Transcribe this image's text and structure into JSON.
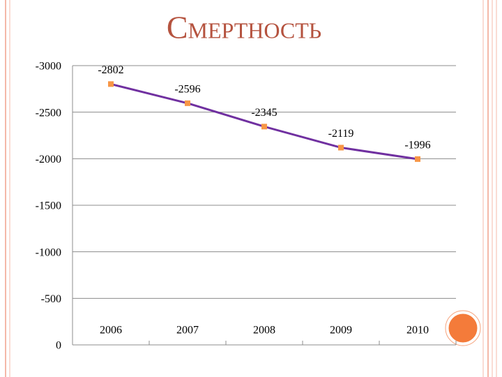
{
  "chart_data": {
    "type": "line",
    "title": "Смертность",
    "categories": [
      "2006",
      "2007",
      "2008",
      "2009",
      "2010"
    ],
    "series": [
      {
        "name": null,
        "color": "#7030a0",
        "marker_color": "#f79646",
        "values": [
          -2802,
          -2596,
          -2345,
          -2119,
          -1996
        ]
      }
    ],
    "ylim": [
      0,
      -3000
    ],
    "yticks": [
      -3000,
      -2500,
      -2000,
      -1500,
      -1000,
      -500,
      0
    ],
    "grid": true
  }
}
